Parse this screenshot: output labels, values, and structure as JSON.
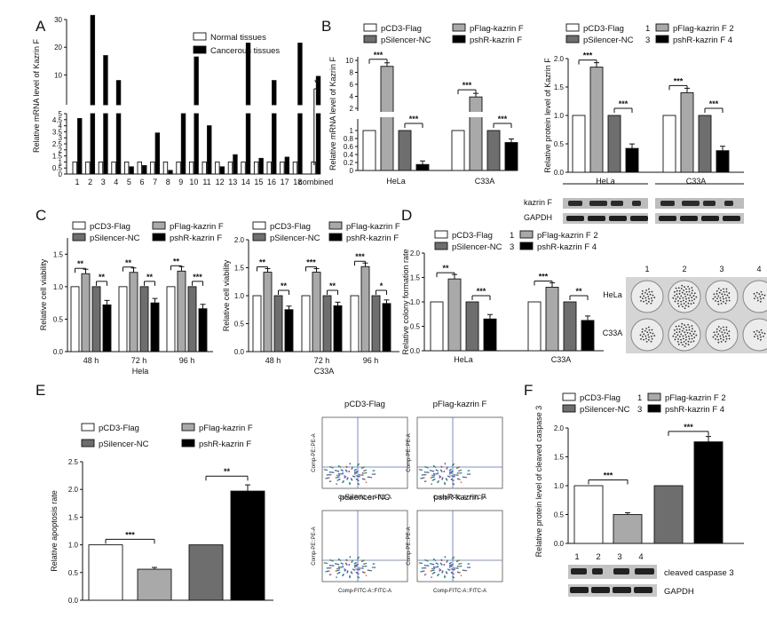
{
  "panels": {
    "A": "A",
    "B": "B",
    "C": "C",
    "D": "D",
    "E": "E",
    "F": "F"
  },
  "colors": {
    "white": "#ffffff",
    "light": "#a9a9a9",
    "dark": "#6e6e6e",
    "black": "#000000"
  },
  "legend4": [
    "pCD3-Flag",
    "pFlag-kazrin F",
    "pSilencer-NC",
    "pshR-kazrin F"
  ],
  "legend4_numbered": [
    "pCD3-Flag",
    "pFlag-kazrin F 2",
    "pSilencer-NC",
    "pshR-kazrin F 4"
  ],
  "lane_nums": [
    "1",
    "2",
    "3",
    "4"
  ],
  "chart_data": [
    {
      "id": "A",
      "type": "bar",
      "ylabel": "Relative mRNA level of Kazrin F",
      "series": [
        {
          "name": "Normal tissues"
        },
        {
          "name": "Cancerous tissues"
        }
      ],
      "categories": [
        "1",
        "2",
        "3",
        "4",
        "5",
        "6",
        "7",
        "8",
        "9",
        "10",
        "11",
        "12",
        "13",
        "14",
        "15",
        "16",
        "17",
        "18",
        "combined"
      ],
      "normal": [
        1,
        1,
        1,
        1,
        1,
        1,
        1,
        1,
        1,
        1,
        1,
        1,
        1,
        1,
        1,
        1,
        1,
        1,
        1
      ],
      "cancer": [
        4.6,
        31.5,
        17,
        8,
        0.6,
        0.7,
        3.4,
        0.3,
        5,
        16.5,
        4,
        0.6,
        1.6,
        21.5,
        1.3,
        8,
        1.4,
        21.5,
        9.5
      ],
      "yticks_low": [
        "0",
        "0.5",
        "1",
        "1.5",
        "2",
        "2.5",
        "3",
        "3.5",
        "4",
        "4.5",
        "5"
      ],
      "yticks_high": [
        "10",
        "20",
        "30"
      ],
      "annotation": "**"
    },
    {
      "id": "B-mRNA",
      "type": "bar",
      "ylabel": "Relative mRNA level of Kazrin F",
      "groups": [
        "HeLa",
        "C33A"
      ],
      "values": [
        [
          1,
          9,
          1,
          0.15
        ],
        [
          1,
          3.9,
          1,
          0.7
        ]
      ],
      "yticks": [
        "0",
        "0.2",
        "0.4",
        "0.6",
        "0.8",
        "1",
        "2",
        "4",
        "6",
        "8",
        "10"
      ],
      "sig": [
        "***",
        "***",
        "***",
        "***"
      ]
    },
    {
      "id": "B-protein",
      "type": "bar",
      "ylabel": "Relative protein level of Kazrin F",
      "groups": [
        "HeLa",
        "C33A"
      ],
      "values": [
        [
          1,
          1.85,
          1,
          0.42
        ],
        [
          1,
          1.4,
          1,
          0.38
        ]
      ],
      "yticks": [
        "0.0",
        "0.5",
        "1.0",
        "1.5",
        "2.0"
      ],
      "sig": [
        "***",
        "***",
        "***",
        "***"
      ],
      "blot_labels": [
        "kazrin F",
        "GAPDH"
      ]
    },
    {
      "id": "C-Hela",
      "type": "bar",
      "ylabel": "Relative cell viability",
      "xlabel": "Hela",
      "groups": [
        "48 h",
        "72 h",
        "96 h"
      ],
      "values": [
        [
          1,
          1.2,
          1,
          0.72
        ],
        [
          1,
          1.22,
          1,
          0.75
        ],
        [
          1,
          1.24,
          1,
          0.66
        ]
      ],
      "yticks": [
        "0.0",
        "0.5",
        "1.0",
        "1.5"
      ],
      "sig": [
        "**",
        "**",
        "**",
        "**",
        "**",
        "***"
      ]
    },
    {
      "id": "C-C33A",
      "type": "bar",
      "ylabel": "Relative cell viability",
      "xlabel": "C33A",
      "groups": [
        "48 h",
        "72 h",
        "96 h"
      ],
      "values": [
        [
          1,
          1.42,
          1,
          0.75
        ],
        [
          1,
          1.42,
          1,
          0.82
        ],
        [
          1,
          1.52,
          1,
          0.86
        ]
      ],
      "yticks": [
        "0.0",
        "0.5",
        "1.0",
        "1.5",
        "2.0"
      ],
      "sig": [
        "**",
        "**",
        "***",
        "**",
        "***",
        "*"
      ]
    },
    {
      "id": "D",
      "type": "bar",
      "ylabel": "Relative colony formation rate",
      "groups": [
        "HeLa",
        "C33A"
      ],
      "values": [
        [
          1,
          1.47,
          1,
          0.65
        ],
        [
          1,
          1.3,
          1,
          0.62
        ]
      ],
      "yticks": [
        "0.0",
        "0.5",
        "1.0",
        "1.5",
        "2.0"
      ],
      "sig": [
        "**",
        "***",
        "***",
        "**"
      ],
      "dish_rows": [
        "HeLa",
        "C33A"
      ]
    },
    {
      "id": "E",
      "type": "bar",
      "ylabel": "Relative apoptosis rate",
      "values": [
        1,
        0.56,
        1,
        1.97
      ],
      "yticks": [
        "0.0",
        "0.5",
        "1.0",
        "1.5",
        "2.0",
        "2.5"
      ],
      "sig": [
        "***",
        "**"
      ],
      "flow_titles": [
        "pCD3-Flag",
        "pFlag-kazrin F",
        "pSilencer-NC",
        "pshR-kazrin F"
      ],
      "flow_xlabel": "Comp-FITC-A::FITC-A",
      "flow_ylabel": "Comp-PE::PE-A"
    },
    {
      "id": "F",
      "type": "bar",
      "ylabel": "Relative protein level of cleaved caspase 3",
      "values": [
        1,
        0.5,
        1,
        1.76
      ],
      "yticks": [
        "0.0",
        "0.5",
        "1.0",
        "1.5",
        "2.0"
      ],
      "sig": [
        "***",
        "***"
      ],
      "blot_labels": [
        "cleaved caspase 3",
        "GAPDH"
      ]
    }
  ]
}
